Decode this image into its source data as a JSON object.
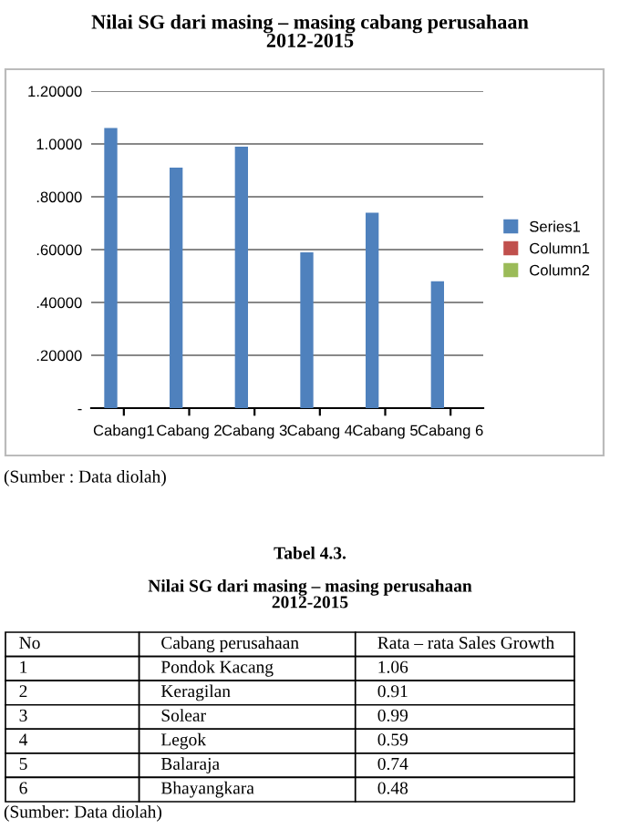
{
  "chart_data": {
    "type": "bar",
    "title": "Nilai SG dari masing – masing cabang perusahaan\n2012-2015",
    "categories": [
      "Cabang1",
      "Cabang 2",
      "Cabang 3",
      "Cabang 4",
      "Cabang 5",
      "Cabang 6"
    ],
    "series": [
      {
        "name": "Series1",
        "color": "#4f81bd",
        "values": [
          1.06,
          0.91,
          0.99,
          0.59,
          0.74,
          0.48
        ]
      },
      {
        "name": "Column1",
        "color": "#c0504d",
        "values": [
          null,
          null,
          null,
          null,
          null,
          null
        ]
      },
      {
        "name": "Column2",
        "color": "#9bbb59",
        "values": [
          null,
          null,
          null,
          null,
          null,
          null
        ]
      }
    ],
    "ylim": [
      0,
      1.2
    ],
    "yticks": [
      {
        "value": 0,
        "label": "-"
      },
      {
        "value": 0.2,
        "label": ".20000"
      },
      {
        "value": 0.4,
        "label": ".40000"
      },
      {
        "value": 0.6,
        "label": ".60000"
      },
      {
        "value": 0.8,
        "label": ".80000"
      },
      {
        "value": 1.0,
        "label": "1.0000"
      },
      {
        "value": 1.2,
        "label": "1.20000"
      }
    ],
    "grid": "y",
    "legend": "right",
    "annotations": [
      "(Sumber : Data diolah)",
      "Tabel 4.3.",
      "Nilai SG dari masing – masing perusahaan\n2012-2015",
      "No\tCabang perusahaan\tRata – rata Sales Growth",
      "1\tPondok Kacang\t1.06",
      "2\tKeragilan\t0.91",
      "3\tSolear\t0.99",
      "4\tLegok\t0.59",
      "5\tBalaraja\t0.74",
      "6\tBhayangkara\t0.48",
      "(Sumber: Data diolah)"
    ]
  }
}
